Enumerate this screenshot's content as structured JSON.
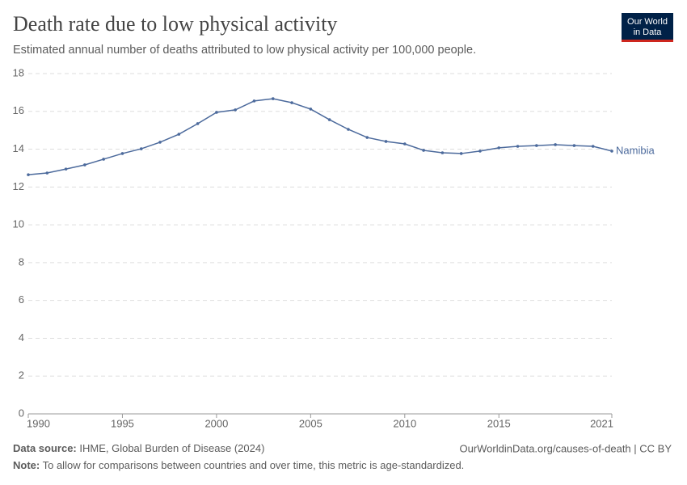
{
  "chart_data": {
    "type": "line",
    "title": "Death rate due to low physical activity",
    "subtitle": "Estimated annual number of deaths attributed to low physical activity per 100,000 people.",
    "logo": [
      "Our World",
      "in Data"
    ],
    "x": [
      1990,
      1991,
      1992,
      1993,
      1994,
      1995,
      1996,
      1997,
      1998,
      1999,
      2000,
      2001,
      2002,
      2003,
      2004,
      2005,
      2006,
      2007,
      2008,
      2009,
      2010,
      2011,
      2012,
      2013,
      2014,
      2015,
      2016,
      2017,
      2018,
      2019,
      2020,
      2021
    ],
    "series": [
      {
        "name": "Namibia",
        "color": "#4c6a9c",
        "values": [
          12.65,
          12.74,
          12.95,
          13.17,
          13.47,
          13.77,
          14.02,
          14.37,
          14.79,
          15.35,
          15.95,
          16.08,
          16.55,
          16.67,
          16.46,
          16.12,
          15.56,
          15.05,
          14.62,
          14.41,
          14.28,
          13.94,
          13.81,
          13.77,
          13.9,
          14.07,
          14.15,
          14.19,
          14.24,
          14.19,
          14.15,
          13.9
        ]
      }
    ],
    "xlim": [
      1990,
      2021
    ],
    "xticks": [
      1990,
      1995,
      2000,
      2005,
      2010,
      2015,
      2021
    ],
    "ylim": [
      0,
      18
    ],
    "yticks": [
      0,
      2,
      4,
      6,
      8,
      10,
      12,
      14,
      16,
      18
    ],
    "grid": true,
    "source_label": "Data source:",
    "source": "IHME, Global Burden of Disease (2024)",
    "url": "OurWorldinData.org/causes-of-death | CC BY",
    "note_label": "Note:",
    "note": "To allow for comparisons between countries and over time, this metric is age-standardized."
  }
}
